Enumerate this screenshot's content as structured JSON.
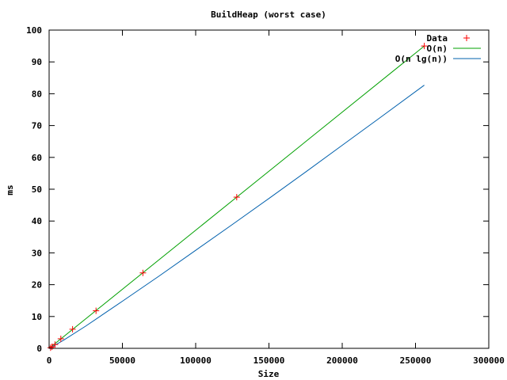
{
  "chart_data": {
    "type": "line",
    "title": "BuildHeap (worst case)",
    "xlabel": "Size",
    "ylabel": "ms",
    "xlim": [
      0,
      300000
    ],
    "ylim": [
      0,
      100
    ],
    "xticks": [
      0,
      50000,
      100000,
      150000,
      200000,
      250000,
      300000
    ],
    "yticks": [
      0,
      10,
      20,
      30,
      40,
      50,
      60,
      70,
      80,
      90,
      100
    ],
    "grid": false,
    "legend_position": "top-right",
    "series": [
      {
        "name": "Data",
        "style": "points",
        "marker": "+",
        "color": "#ff0000",
        "points": [
          [
            1000,
            0.2
          ],
          [
            2000,
            0.5
          ],
          [
            4000,
            1.2
          ],
          [
            8000,
            3.0
          ],
          [
            16000,
            6.0
          ],
          [
            32000,
            11.8
          ],
          [
            64000,
            23.7
          ],
          [
            128000,
            47.5
          ],
          [
            256000,
            95.0
          ]
        ]
      },
      {
        "name": "O(n)",
        "style": "line",
        "color": "#00a000",
        "points": [
          [
            0,
            0.0
          ],
          [
            256000,
            95.0
          ]
        ]
      },
      {
        "name": "O(n lg(n))",
        "style": "line",
        "color": "#0060ad",
        "points": [
          [
            1000,
            0.2
          ],
          [
            10000,
            2.6
          ],
          [
            25000,
            7.0
          ],
          [
            50000,
            14.8
          ],
          [
            75000,
            22.7
          ],
          [
            100000,
            30.8
          ],
          [
            125000,
            38.9
          ],
          [
            150000,
            47.1
          ],
          [
            175000,
            55.4
          ],
          [
            200000,
            63.8
          ],
          [
            225000,
            72.2
          ],
          [
            256000,
            82.7
          ]
        ]
      }
    ]
  }
}
